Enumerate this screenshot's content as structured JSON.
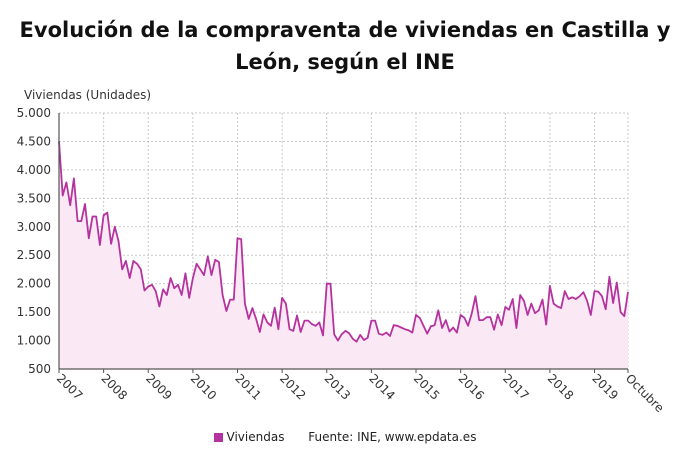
{
  "chart_data": {
    "type": "area",
    "title": "Evolución de la compraventa de viviendas en Castilla y León, según el INE",
    "ylabel": "Viviendas (Unidades)",
    "xlabel": "",
    "ylim": [
      500,
      5000
    ],
    "yticks": [
      "5.000",
      "4.500",
      "4.000",
      "3.500",
      "3.000",
      "2.500",
      "2.000",
      "1.500",
      "1.000",
      "500"
    ],
    "ytick_values": [
      5000,
      4500,
      4000,
      3500,
      3000,
      2500,
      2000,
      1500,
      1000,
      500
    ],
    "xticks": [
      "2007",
      "2008",
      "2009",
      "2010",
      "2011",
      "2012",
      "2013",
      "2014",
      "2015",
      "2016",
      "2017",
      "2018",
      "2019",
      "Octubre"
    ],
    "start": "2007-01",
    "end": "2019-10",
    "frequency": "monthly",
    "grid": true,
    "legend_position": "bottom",
    "series": [
      {
        "name": "Viviendas",
        "color": "#b5339e",
        "fill": "#fbe8f5",
        "values": [
          4500,
          3550,
          3780,
          3380,
          3850,
          3100,
          3100,
          3400,
          2800,
          3180,
          3180,
          2680,
          3200,
          3250,
          2700,
          3000,
          2750,
          2250,
          2400,
          2100,
          2400,
          2350,
          2250,
          1880,
          1950,
          1980,
          1870,
          1600,
          1900,
          1800,
          2100,
          1920,
          1980,
          1800,
          2180,
          1750,
          2100,
          2350,
          2250,
          2150,
          2480,
          2150,
          2420,
          2380,
          1800,
          1520,
          1720,
          1720,
          2800,
          2780,
          1650,
          1380,
          1570,
          1380,
          1150,
          1460,
          1320,
          1260,
          1580,
          1200,
          1750,
          1650,
          1200,
          1170,
          1440,
          1150,
          1350,
          1350,
          1290,
          1260,
          1320,
          1090,
          2000,
          2000,
          1110,
          1000,
          1110,
          1170,
          1130,
          1030,
          980,
          1100,
          1010,
          1050,
          1350,
          1350,
          1120,
          1100,
          1140,
          1080,
          1270,
          1260,
          1230,
          1200,
          1180,
          1140,
          1450,
          1400,
          1260,
          1120,
          1250,
          1270,
          1530,
          1220,
          1360,
          1160,
          1230,
          1140,
          1450,
          1400,
          1260,
          1480,
          1780,
          1360,
          1360,
          1410,
          1410,
          1190,
          1460,
          1270,
          1590,
          1540,
          1730,
          1220,
          1800,
          1700,
          1450,
          1650,
          1480,
          1530,
          1720,
          1280,
          1960,
          1650,
          1600,
          1570,
          1870,
          1730,
          1760,
          1730,
          1780,
          1850,
          1700,
          1450,
          1870,
          1860,
          1780,
          1550,
          2120,
          1660,
          2020,
          1500,
          1430,
          1850
        ]
      }
    ],
    "source": "Fuente: INE, www.epdata.es"
  }
}
